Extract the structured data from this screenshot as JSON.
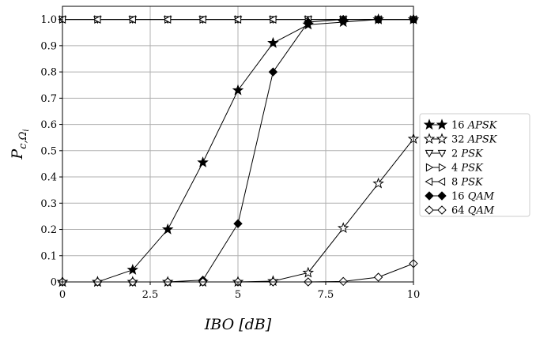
{
  "chart_data": {
    "type": "line",
    "xlabel": "IBO [dB]",
    "ylabel": "P_{c,Ω_i}",
    "xlim": [
      0,
      10
    ],
    "ylim": [
      0,
      1.05
    ],
    "xticks": [
      "0",
      "2.5",
      "5",
      "7.5",
      "10"
    ],
    "yticks": [
      "0",
      "0.1",
      "0.2",
      "0.3",
      "0.4",
      "0.5",
      "0.6",
      "0.7",
      "0.8",
      "0.9",
      "1.0"
    ],
    "grid": true,
    "legend_position": "right",
    "x": [
      0,
      1,
      2,
      3,
      4,
      5,
      6,
      7,
      8,
      9,
      10
    ],
    "series": [
      {
        "name": "16 APSK",
        "marker": "star-filled",
        "values": [
          0,
          0,
          0.046,
          0.2,
          0.455,
          0.73,
          0.91,
          0.98,
          0.99,
          1.0,
          1.0
        ]
      },
      {
        "name": "32 APSK",
        "marker": "star-open",
        "values": [
          0,
          0,
          0,
          0,
          0,
          0,
          0.003,
          0.035,
          0.205,
          0.375,
          0.545
        ]
      },
      {
        "name": "2 PSK",
        "marker": "triangle-down-open",
        "values": [
          1.0,
          1.0,
          1.0,
          1.0,
          1.0,
          1.0,
          1.0,
          1.0,
          1.0,
          1.0,
          1.0
        ]
      },
      {
        "name": "4 PSK",
        "marker": "triangle-right-open",
        "values": [
          1.0,
          1.0,
          1.0,
          1.0,
          1.0,
          1.0,
          1.0,
          1.0,
          1.0,
          1.0,
          1.0
        ]
      },
      {
        "name": "8 PSK",
        "marker": "triangle-left-open",
        "values": [
          1.0,
          1.0,
          1.0,
          1.0,
          1.0,
          1.0,
          1.0,
          1.0,
          1.0,
          1.0,
          1.0
        ]
      },
      {
        "name": "16 QAM",
        "marker": "diamond-filled",
        "values": [
          0,
          0,
          0,
          0,
          0.007,
          0.222,
          0.8,
          0.99,
          1.0,
          1.0,
          1.0
        ]
      },
      {
        "name": "64 QAM",
        "marker": "diamond-open",
        "values": [
          0,
          0,
          0,
          0,
          0,
          0,
          0,
          0,
          0.002,
          0.018,
          0.07
        ]
      }
    ]
  },
  "colors": {
    "line": "#000000",
    "grid": "#b0b0b0",
    "background": "#ffffff"
  }
}
